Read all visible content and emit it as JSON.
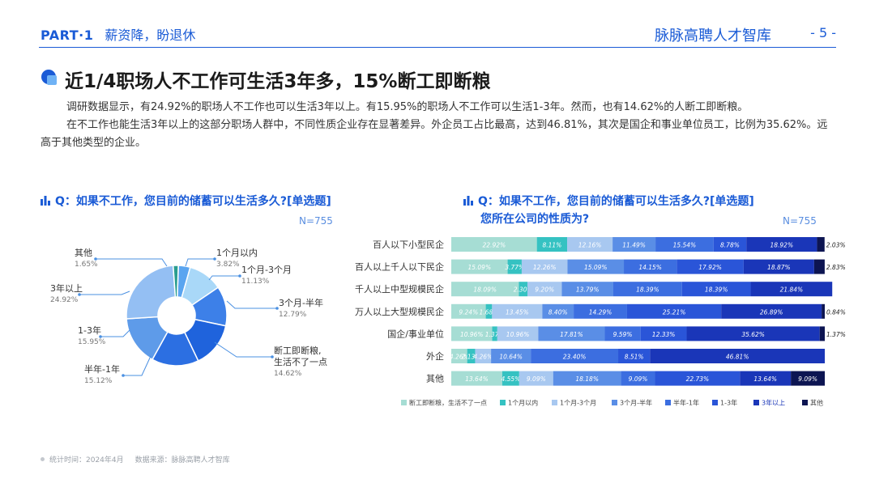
{
  "header": {
    "part": "PART·1",
    "subtitle": "薪资降，盼退休",
    "brand": "脉脉高聘人才智库",
    "page": "- 5 -"
  },
  "title": "近1/4职场人不工作可生活3年多，15%断工即断粮",
  "paragraphs": [
    "调研数据显示，有24.92%的职场人不工作也可以生活3年以上。有15.95%的职场人不工作可以生活1-3年。然而，也有14.62%的人断工即断粮。",
    "在不工作也能生活3年以上的这部分职场人群中，不同性质企业存在显著差异。外企员工占比最高，达到46.81%，其次是国企和事业单位员工，比例为35.62%。远高于其他类型的企业。"
  ],
  "left_chart": {
    "question": "Q：如果不工作，您目前的储蓄可以生活多久?[单选题]",
    "n": "N=755"
  },
  "right_chart": {
    "question": "Q：如果不工作，您目前的储蓄可以生活多久?[单选题]",
    "question2": "您所在公司的性质为?",
    "n": "N=755"
  },
  "footer": {
    "time": "统计时间：2024年4月",
    "source": "数据来源：脉脉高聘人才智库"
  },
  "chart_data": [
    {
      "type": "pie",
      "labels": [
        "断工即断粮，生活不了一点",
        "1个月以内",
        "1个月-3个月",
        "3个月-半年",
        "半年-1年",
        "1-3年",
        "3年以上",
        "其他"
      ],
      "values": [
        14.62,
        3.82,
        11.13,
        12.79,
        15.12,
        15.95,
        24.92,
        1.65
      ],
      "value_labels": [
        "14.62%",
        "3.82%",
        "11.13%",
        "12.79%",
        "15.12%",
        "15.95%",
        "24.92%",
        "1.65%"
      ],
      "colors": [
        "#1f63dc",
        "#5aa5f0",
        "#a9d8f8",
        "#3d80e8",
        "#2c6fe2",
        "#5e9be9",
        "#94bff3",
        "#2a9d8f"
      ]
    },
    {
      "type": "bar",
      "orientation": "horizontal",
      "stacked": "100%",
      "categories": [
        "百人以下小型民企",
        "百人以上千人以下民企",
        "千人以上中型规模民企",
        "万人以上大型规模民企",
        "国企/事业单位",
        "外企",
        "其他"
      ],
      "series": [
        {
          "name": "断工即断粮，生活不了一点",
          "color": "#a6ddd4",
          "values": [
            22.92,
            15.09,
            18.09,
            9.24,
            10.96,
            4.26,
            13.64
          ],
          "labels": [
            "22.92%",
            "15.09%",
            "18.09%",
            "9.24%",
            "10.96%",
            "4.26%",
            "13.64%"
          ]
        },
        {
          "name": "1个月以内",
          "color": "#35c2c2",
          "values": [
            8.11,
            3.77,
            2.3,
            1.68,
            1.37,
            2.13,
            4.55
          ],
          "labels": [
            "8.11%",
            "3.77%",
            "2.30%",
            "1.68%",
            "1.37%",
            "2.13%",
            "4.55%"
          ]
        },
        {
          "name": "1个月-3个月",
          "color": "#a8c8f0",
          "values": [
            12.16,
            12.26,
            9.2,
            13.45,
            10.96,
            4.26,
            9.09
          ],
          "labels": [
            "12.16%",
            "12.26%",
            "9.20%",
            "13.45%",
            "10.96%",
            "4.26%",
            "9.09%"
          ]
        },
        {
          "name": "3个月-半年",
          "color": "#5a8ee6",
          "values": [
            11.49,
            15.09,
            13.79,
            8.4,
            17.81,
            10.64,
            18.18
          ],
          "labels": [
            "11.49%",
            "15.09%",
            "13.79%",
            "8.40%",
            "17.81%",
            "10.64%",
            "18.18%"
          ]
        },
        {
          "name": "半年-1年",
          "color": "#3c6ee0",
          "values": [
            15.54,
            14.15,
            18.39,
            14.29,
            9.59,
            23.4,
            9.09
          ],
          "labels": [
            "15.54%",
            "14.15%",
            "18.39%",
            "14.29%",
            "9.59%",
            "23.40%",
            "9.09%"
          ]
        },
        {
          "name": "1-3年",
          "color": "#2a55d8",
          "values": [
            8.78,
            17.92,
            18.39,
            25.21,
            12.33,
            8.51,
            22.73
          ],
          "labels": [
            "8.78%",
            "17.92%",
            "18.39%",
            "25.21%",
            "12.33%",
            "8.51%",
            "22.73%"
          ]
        },
        {
          "name": "3年以上",
          "color": "#1a36b8",
          "values": [
            18.92,
            18.87,
            21.84,
            26.89,
            35.62,
            46.81,
            13.64
          ],
          "labels": [
            "18.92%",
            "18.87%",
            "21.84%",
            "26.89%",
            "35.62%",
            "46.81%",
            "13.64%"
          ]
        },
        {
          "name": "其他",
          "color": "#0d1552",
          "values": [
            2.03,
            2.83,
            0,
            0.84,
            1.37,
            0,
            9.09
          ],
          "labels": [
            "2.03%",
            "2.83%",
            "",
            "0.84%",
            "1.37%",
            "",
            "9.09%"
          ]
        }
      ]
    }
  ]
}
